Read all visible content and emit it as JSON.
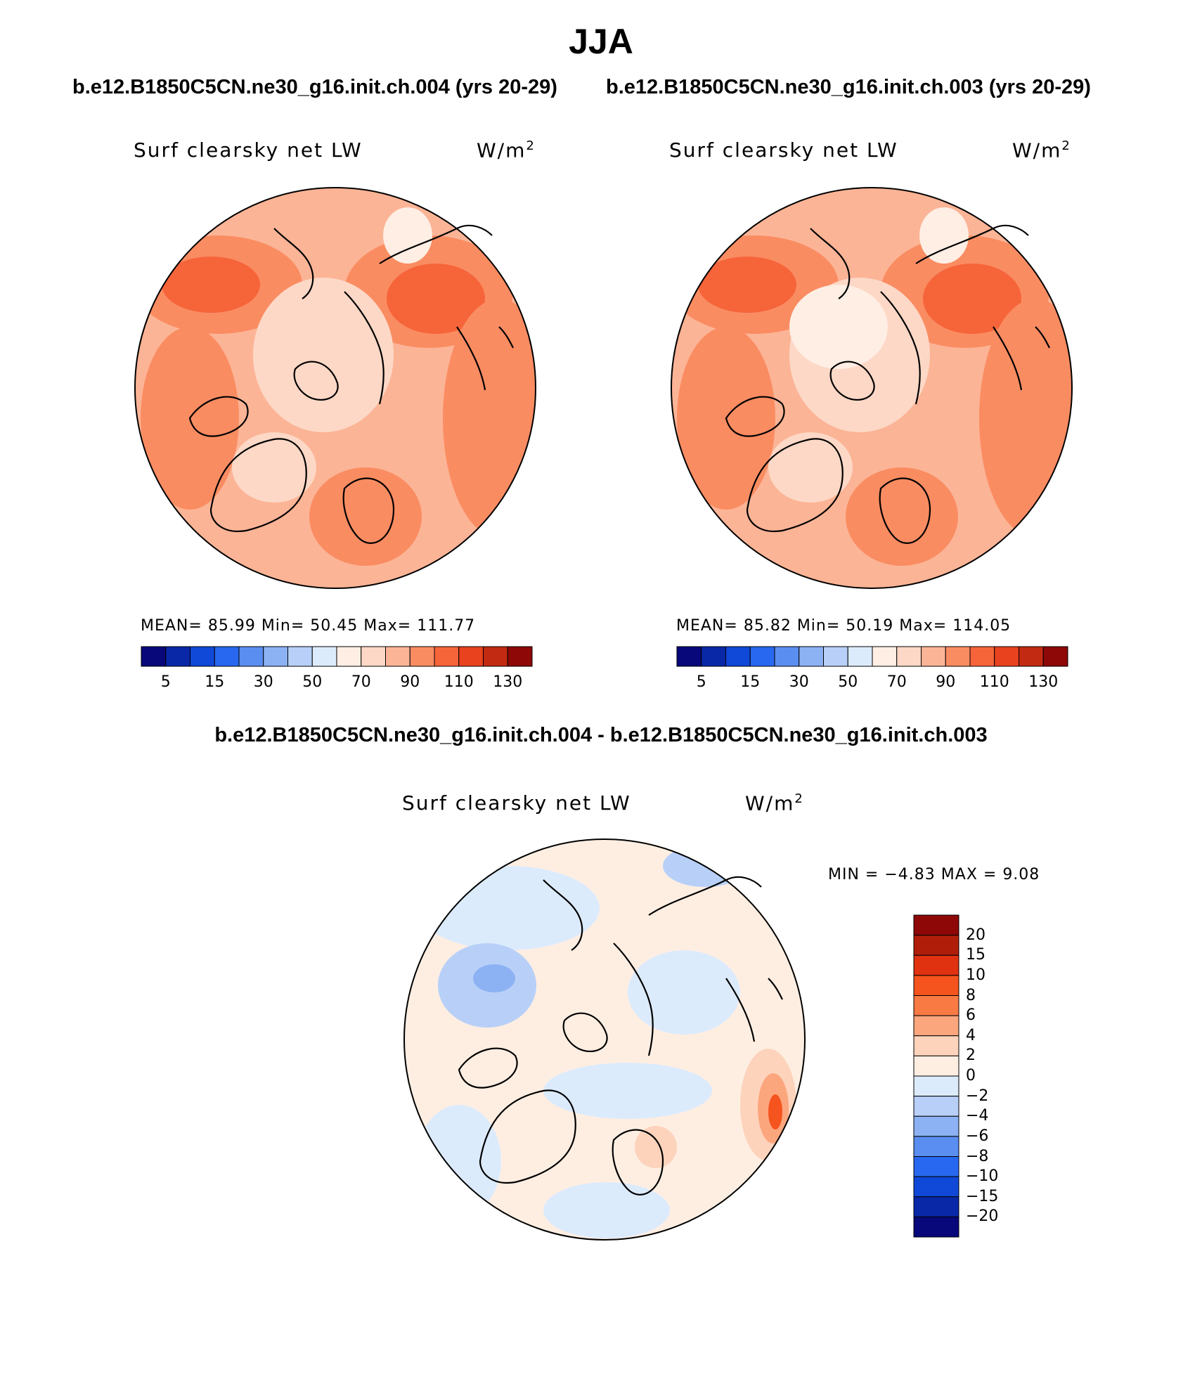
{
  "figure": {
    "season": "JJA",
    "case_test": "b.e12.B1850C5CN.ne30_g16.init.ch.004 (yrs 20-29)",
    "case_ctrl": "b.e12.B1850C5CN.ne30_g16.init.ch.003 (yrs 20-29)",
    "diff_title": "b.e12.B1850C5CN.ne30_g16.init.ch.004 - b.e12.B1850C5CN.ne30_g16.init.ch.003"
  },
  "colors": {
    "full_scale": [
      "#08087a",
      "#0828a8",
      "#1048d8",
      "#2868f0",
      "#5a8ef0",
      "#8cb2f4",
      "#b8d0f8",
      "#dcebfc",
      "#feeee4",
      "#fdd8c6",
      "#fcb496",
      "#fa8c62",
      "#f6643a",
      "#e8421e",
      "#c22a12",
      "#8e0808"
    ],
    "diff_scale": [
      "#8e0808",
      "#b01e0a",
      "#e03210",
      "#f6541e",
      "#fa7a44",
      "#fca67e",
      "#fdd3bc",
      "#feeee2",
      "#dcebfc",
      "#b8d0f8",
      "#8cb2f4",
      "#5a8ef0",
      "#2868f0",
      "#1048d8",
      "#0828a8",
      "#08087a"
    ]
  },
  "chart_data": [
    {
      "type": "heatmap",
      "subtitle": "b.e12.B1850C5CN.ne30_g16.init.ch.004 (yrs 20-29)",
      "variable": "Surf clearsky net LW",
      "units": "W/m",
      "units_exp": "2",
      "stats": {
        "mean_label": "MEAN=",
        "mean": "85.99",
        "min_label": "Min=",
        "min": "50.45",
        "max_label": "Max=",
        "max": "111.77"
      },
      "colorbar_ticks": [
        "5",
        "15",
        "30",
        "50",
        "70",
        "90",
        "110",
        "130"
      ]
    },
    {
      "type": "heatmap",
      "subtitle": "b.e12.B1850C5CN.ne30_g16.init.ch.003 (yrs 20-29)",
      "variable": "Surf clearsky net LW",
      "units": "W/m",
      "units_exp": "2",
      "stats": {
        "mean_label": "MEAN=",
        "mean": "85.82",
        "min_label": "Min=",
        "min": "50.19",
        "max_label": "Max=",
        "max": "114.05"
      },
      "colorbar_ticks": [
        "5",
        "15",
        "30",
        "50",
        "70",
        "90",
        "110",
        "130"
      ]
    },
    {
      "type": "heatmap",
      "subtitle": "b.e12.B1850C5CN.ne30_g16.init.ch.004 - b.e12.B1850C5CN.ne30_g16.init.ch.003",
      "variable": "Surf clearsky net LW",
      "units": "W/m",
      "units_exp": "2",
      "stats": {
        "min_label": "MIN =",
        "min": "−4.83",
        "max_label": "MAX =",
        "max": "9.08"
      },
      "colorbar_ticks": [
        "20",
        "15",
        "10",
        "8",
        "6",
        "4",
        "2",
        "0",
        "−2",
        "−4",
        "−6",
        "−8",
        "−10",
        "−15",
        "−20"
      ]
    }
  ]
}
